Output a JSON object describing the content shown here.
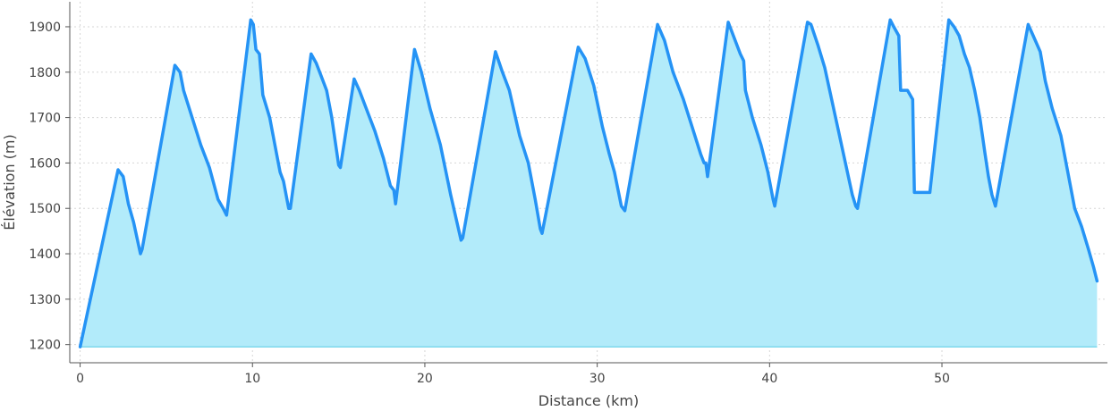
{
  "chart_data": {
    "type": "area",
    "xlabel": "Distance (km)",
    "ylabel": "Élévation (m)",
    "xlim": [
      -0.6,
      59.6
    ],
    "ylim": [
      1160,
      1955
    ],
    "xticks": [
      0,
      10,
      20,
      30,
      40,
      50
    ],
    "yticks": [
      1200,
      1300,
      1400,
      1500,
      1600,
      1700,
      1800,
      1900
    ],
    "grid": true,
    "colors": {
      "line": "#2593F5",
      "fill": "#B2EBFA",
      "baseline": "#7FD8EC"
    },
    "baseline": 1195,
    "series": [
      {
        "x": [
          0,
          2.2,
          2.5,
          2.8,
          3.1,
          3.5,
          3.6,
          5.5,
          5.8,
          6.0,
          6.5,
          7.0,
          7.5,
          8.0,
          8.3,
          8.5,
          9.9,
          10.05,
          10.2,
          10.4,
          10.6,
          11.0,
          11.4,
          11.6,
          11.8,
          12.1,
          12.2,
          13.4,
          13.7,
          14.0,
          14.3,
          14.6,
          15.0,
          15.1,
          15.9,
          16.2,
          16.6,
          17.1,
          17.6,
          18.0,
          18.2,
          18.3,
          19.4,
          19.8,
          20.3,
          20.9,
          21.5,
          22.1,
          22.2,
          24.1,
          24.5,
          24.9,
          25.2,
          25.5,
          26.0,
          26.4,
          26.7,
          26.8,
          28.9,
          29.3,
          29.8,
          30.3,
          30.7,
          31.0,
          31.4,
          31.6,
          33.5,
          33.9,
          34.4,
          35.0,
          35.5,
          36.0,
          36.2,
          36.3,
          36.4,
          37.6,
          37.9,
          38.3,
          38.5,
          38.6,
          39.0,
          39.5,
          39.9,
          40.2,
          40.3,
          42.2,
          42.4,
          42.8,
          43.2,
          43.6,
          44.0,
          44.4,
          44.8,
          45.0,
          45.1,
          47.0,
          47.2,
          47.5,
          47.6,
          48.0,
          48.3,
          48.4,
          49.3,
          50.4,
          50.7,
          51.0,
          51.3,
          51.6,
          51.9,
          52.2,
          52.5,
          52.7,
          52.9,
          53.1,
          55.0,
          55.3,
          55.7,
          56.0,
          56.4,
          56.9,
          57.3,
          57.7,
          58.1,
          58.5,
          58.8,
          59.0
        ],
        "y": [
          1195,
          1585,
          1570,
          1510,
          1470,
          1400,
          1410,
          1815,
          1800,
          1760,
          1700,
          1640,
          1590,
          1520,
          1500,
          1485,
          1915,
          1905,
          1850,
          1840,
          1750,
          1700,
          1620,
          1580,
          1560,
          1500,
          1500,
          1840,
          1820,
          1790,
          1760,
          1700,
          1595,
          1590,
          1785,
          1760,
          1720,
          1670,
          1610,
          1550,
          1540,
          1510,
          1850,
          1800,
          1720,
          1640,
          1530,
          1430,
          1435,
          1845,
          1800,
          1760,
          1710,
          1660,
          1600,
          1520,
          1455,
          1445,
          1855,
          1830,
          1770,
          1680,
          1620,
          1580,
          1505,
          1495,
          1905,
          1870,
          1800,
          1740,
          1680,
          1620,
          1600,
          1600,
          1570,
          1910,
          1880,
          1840,
          1825,
          1760,
          1700,
          1640,
          1580,
          1520,
          1505,
          1910,
          1905,
          1860,
          1810,
          1740,
          1670,
          1600,
          1530,
          1505,
          1500,
          1915,
          1900,
          1880,
          1760,
          1760,
          1740,
          1535,
          1535,
          1915,
          1900,
          1880,
          1840,
          1810,
          1760,
          1700,
          1620,
          1570,
          1530,
          1505,
          1905,
          1880,
          1845,
          1780,
          1720,
          1660,
          1580,
          1500,
          1460,
          1410,
          1370,
          1340
        ]
      }
    ]
  }
}
